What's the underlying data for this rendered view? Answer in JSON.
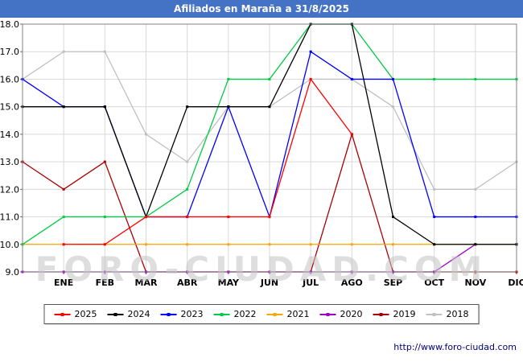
{
  "title": {
    "text": "Afiliados en Maraña a 31/8/2025",
    "bg": "#4472c4",
    "color": "#ffffff"
  },
  "watermark": "FORO-CIUDAD.COM",
  "footer": {
    "url": "http://www.foro-ciudad.com"
  },
  "chart_data": {
    "type": "line",
    "title": "Afiliados en Maraña a 31/8/2025",
    "categories": [
      "ENE",
      "FEB",
      "MAR",
      "ABR",
      "MAY",
      "JUN",
      "JUL",
      "AGO",
      "SEP",
      "OCT",
      "NOV",
      "DIC"
    ],
    "xlabel": "",
    "ylabel": "",
    "ylim": [
      9,
      18
    ],
    "ytick_labels": [
      "9.0",
      "10.0",
      "11.0",
      "12.0",
      "13.0",
      "14.0",
      "15.0",
      "16.0",
      "17.0",
      "18.0"
    ],
    "grid": true,
    "legend_position": "bottom",
    "series": [
      {
        "name": "2025",
        "color": "#ff0000",
        "start": null,
        "values": [
          10,
          10,
          11,
          11,
          11,
          11,
          16,
          14,
          null,
          null,
          null,
          null
        ]
      },
      {
        "name": "2024",
        "color": "#000000",
        "start": 15,
        "values": [
          15,
          15,
          11,
          15,
          15,
          15,
          18,
          18,
          11,
          10,
          10,
          10
        ]
      },
      {
        "name": "2023",
        "color": "#0000ff",
        "start": 16,
        "values": [
          15,
          15,
          11,
          11,
          15,
          11,
          17,
          16,
          16,
          11,
          11,
          11
        ]
      },
      {
        "name": "2022",
        "color": "#00cc44",
        "start": 10,
        "values": [
          11,
          11,
          11,
          12,
          16,
          16,
          18,
          18,
          16,
          16,
          16,
          16
        ]
      },
      {
        "name": "2021",
        "color": "#ffa500",
        "start": 10,
        "values": [
          10,
          10,
          10,
          10,
          10,
          10,
          10,
          10,
          10,
          10,
          10,
          10
        ]
      },
      {
        "name": "2020",
        "color": "#9900cc",
        "start": 9,
        "values": [
          9,
          9,
          9,
          9,
          9,
          9,
          9,
          9,
          9,
          9,
          10,
          10
        ]
      },
      {
        "name": "2019",
        "color": "#aa0000",
        "start": 13,
        "values": [
          12,
          13,
          9,
          9,
          9,
          9,
          9,
          14,
          9,
          9,
          9,
          9
        ]
      },
      {
        "name": "2018",
        "color": "#c0c0c0",
        "start": 16,
        "values": [
          17,
          17,
          14,
          13,
          15,
          15,
          16,
          16,
          15,
          12,
          12,
          13
        ]
      }
    ]
  }
}
